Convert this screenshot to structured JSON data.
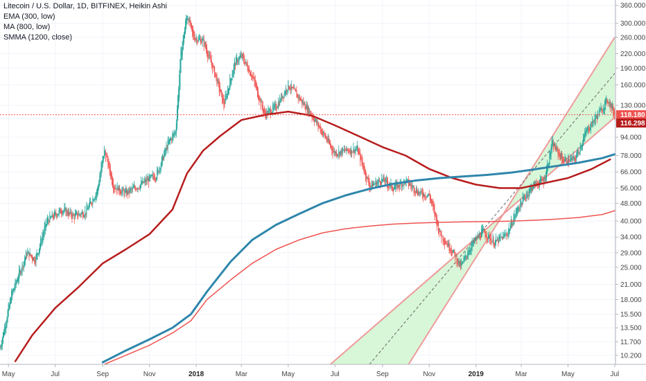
{
  "chart_data": {
    "type": "candlestick",
    "title": "Litecoin / U.S. Dollar, 1D, BITFINEX, Heikin Ashi",
    "scale": "log",
    "ylim": [
      9.3,
      380
    ],
    "grid": true,
    "xlim": [
      "2017-04-20",
      "2019-07-02"
    ],
    "x_ticks": [
      {
        "date": "2017-05-01",
        "label": "May",
        "bold": false
      },
      {
        "date": "2017-07-01",
        "label": "Jul",
        "bold": false
      },
      {
        "date": "2017-09-01",
        "label": "Sep",
        "bold": false
      },
      {
        "date": "2017-11-01",
        "label": "Nov",
        "bold": false
      },
      {
        "date": "2018-01-01",
        "label": "2018",
        "bold": true
      },
      {
        "date": "2018-03-01",
        "label": "Mar",
        "bold": false
      },
      {
        "date": "2018-05-01",
        "label": "May",
        "bold": false
      },
      {
        "date": "2018-07-01",
        "label": "Jul",
        "bold": false
      },
      {
        "date": "2018-09-01",
        "label": "Sep",
        "bold": false
      },
      {
        "date": "2018-11-01",
        "label": "Nov",
        "bold": false
      },
      {
        "date": "2019-01-01",
        "label": "2019",
        "bold": true
      },
      {
        "date": "2019-03-01",
        "label": "Mar",
        "bold": false
      },
      {
        "date": "2019-05-01",
        "label": "May",
        "bold": false
      },
      {
        "date": "2019-07-01",
        "label": "Jul",
        "bold": false
      }
    ],
    "y_ticks": [
      "360.000",
      "300.000",
      "260.000",
      "220.000",
      "190.000",
      "160.000",
      "130.000",
      "94.000",
      "78.000",
      "66.000",
      "56.000",
      "48.000",
      "40.000",
      "34.000",
      "29.000",
      "25.000",
      "21.000",
      "18.000",
      "15.500",
      "13.500",
      "11.700",
      "10.200"
    ],
    "price_line": {
      "value": 118.18,
      "label": "118.180",
      "color": "#ef5350"
    },
    "legend_items": [
      {
        "label": "EMA (300, low)",
        "color": "#b71c1c"
      },
      {
        "label": "MA (800, low)",
        "color": "#2e86ab"
      },
      {
        "label": "SMMA (1200, close)",
        "color": "#ef5350"
      }
    ],
    "price_labels": [
      {
        "text": "118.180",
        "value": 118.18,
        "color": "#ef5350"
      },
      {
        "text": "116.298",
        "value": 116.298,
        "color": "#b71c1c"
      }
    ],
    "price_anchors": [
      [
        "2017-04-20",
        11.0
      ],
      [
        "2017-05-05",
        19.0
      ],
      [
        "2017-05-25",
        29.0
      ],
      [
        "2017-06-05",
        27.0
      ],
      [
        "2017-06-20",
        40.0
      ],
      [
        "2017-07-10",
        45.0
      ],
      [
        "2017-07-25",
        42.0
      ],
      [
        "2017-08-10",
        44.0
      ],
      [
        "2017-08-25",
        55.0
      ],
      [
        "2017-09-03",
        83.0
      ],
      [
        "2017-09-15",
        57.0
      ],
      [
        "2017-10-01",
        53.0
      ],
      [
        "2017-10-20",
        58.0
      ],
      [
        "2017-11-10",
        64.0
      ],
      [
        "2017-11-25",
        88.0
      ],
      [
        "2017-12-05",
        100.0
      ],
      [
        "2017-12-12",
        225.0
      ],
      [
        "2017-12-20",
        330.0
      ],
      [
        "2017-12-28",
        260.0
      ],
      [
        "2018-01-10",
        250.0
      ],
      [
        "2018-01-25",
        180.0
      ],
      [
        "2018-02-06",
        130.0
      ],
      [
        "2018-02-20",
        200.0
      ],
      [
        "2018-03-01",
        215.0
      ],
      [
        "2018-03-15",
        175.0
      ],
      [
        "2018-03-31",
        118.0
      ],
      [
        "2018-04-15",
        128.0
      ],
      [
        "2018-05-01",
        160.0
      ],
      [
        "2018-05-15",
        140.0
      ],
      [
        "2018-05-30",
        120.0
      ],
      [
        "2018-06-15",
        98.0
      ],
      [
        "2018-06-30",
        80.0
      ],
      [
        "2018-07-15",
        82.0
      ],
      [
        "2018-07-30",
        83.0
      ],
      [
        "2018-08-15",
        57.0
      ],
      [
        "2018-09-01",
        61.0
      ],
      [
        "2018-09-15",
        56.0
      ],
      [
        "2018-10-01",
        60.0
      ],
      [
        "2018-10-20",
        53.0
      ],
      [
        "2018-11-01",
        52.0
      ],
      [
        "2018-11-15",
        35.0
      ],
      [
        "2018-11-30",
        30.0
      ],
      [
        "2018-12-12",
        25.0
      ],
      [
        "2018-12-25",
        31.0
      ],
      [
        "2019-01-10",
        36.0
      ],
      [
        "2019-01-25",
        32.0
      ],
      [
        "2019-02-10",
        35.0
      ],
      [
        "2019-02-25",
        46.0
      ],
      [
        "2019-03-15",
        57.0
      ],
      [
        "2019-03-31",
        61.0
      ],
      [
        "2019-04-10",
        88.0
      ],
      [
        "2019-04-25",
        74.0
      ],
      [
        "2019-05-10",
        75.0
      ],
      [
        "2019-05-25",
        100.0
      ],
      [
        "2019-06-10",
        120.0
      ],
      [
        "2019-06-22",
        138.0
      ],
      [
        "2019-07-01",
        118.0
      ]
    ],
    "series": [
      {
        "name": "EMA (300, low)",
        "color": "#b71c1c",
        "width": 2.5,
        "points": [
          [
            "2017-05-10",
            9.6
          ],
          [
            "2017-06-01",
            12.5
          ],
          [
            "2017-07-01",
            16.5
          ],
          [
            "2017-08-01",
            20.5
          ],
          [
            "2017-09-01",
            26.0
          ],
          [
            "2017-10-01",
            30.0
          ],
          [
            "2017-11-01",
            35.0
          ],
          [
            "2017-12-01",
            45.0
          ],
          [
            "2017-12-20",
            65.0
          ],
          [
            "2018-01-10",
            82.0
          ],
          [
            "2018-02-01",
            95.0
          ],
          [
            "2018-03-01",
            112.0
          ],
          [
            "2018-04-01",
            118.0
          ],
          [
            "2018-05-01",
            122.0
          ],
          [
            "2018-06-01",
            117.0
          ],
          [
            "2018-07-01",
            106.0
          ],
          [
            "2018-08-01",
            95.0
          ],
          [
            "2018-09-01",
            85.0
          ],
          [
            "2018-10-01",
            78.0
          ],
          [
            "2018-11-01",
            68.0
          ],
          [
            "2018-12-01",
            62.0
          ],
          [
            "2019-01-01",
            58.0
          ],
          [
            "2019-02-01",
            56.0
          ],
          [
            "2019-03-01",
            56.0
          ],
          [
            "2019-04-01",
            59.0
          ],
          [
            "2019-05-01",
            62.0
          ],
          [
            "2019-06-01",
            68.0
          ],
          [
            "2019-06-25",
            75.0
          ]
        ]
      },
      {
        "name": "MA (800, low)",
        "color": "#2e86ab",
        "width": 3,
        "points": [
          [
            "2017-09-01",
            9.5
          ],
          [
            "2017-10-01",
            10.7
          ],
          [
            "2017-11-01",
            12.0
          ],
          [
            "2017-12-01",
            13.5
          ],
          [
            "2017-12-25",
            15.5
          ],
          [
            "2018-01-15",
            19.5
          ],
          [
            "2018-02-15",
            26.5
          ],
          [
            "2018-03-15",
            33.0
          ],
          [
            "2018-04-15",
            38.5
          ],
          [
            "2018-05-15",
            43.0
          ],
          [
            "2018-06-15",
            48.0
          ],
          [
            "2018-07-15",
            52.0
          ],
          [
            "2018-08-15",
            55.5
          ],
          [
            "2018-09-15",
            58.5
          ],
          [
            "2018-10-15",
            60.5
          ],
          [
            "2018-11-15",
            62.0
          ],
          [
            "2018-12-15",
            63.0
          ],
          [
            "2019-01-15",
            64.0
          ],
          [
            "2019-02-15",
            65.5
          ],
          [
            "2019-03-15",
            67.5
          ],
          [
            "2019-04-15",
            70.0
          ],
          [
            "2019-05-15",
            72.5
          ],
          [
            "2019-06-15",
            76.0
          ],
          [
            "2019-07-01",
            79.0
          ]
        ]
      },
      {
        "name": "SMMA (1200, close)",
        "color": "#ef5350",
        "width": 1.5,
        "points": [
          [
            "2017-09-03",
            9.3
          ],
          [
            "2017-10-01",
            10.2
          ],
          [
            "2017-11-01",
            11.3
          ],
          [
            "2017-12-01",
            12.8
          ],
          [
            "2017-12-25",
            14.5
          ],
          [
            "2018-01-15",
            18.0
          ],
          [
            "2018-02-15",
            22.0
          ],
          [
            "2018-03-15",
            26.0
          ],
          [
            "2018-04-15",
            30.0
          ],
          [
            "2018-05-15",
            33.0
          ],
          [
            "2018-06-15",
            35.5
          ],
          [
            "2018-07-15",
            37.0
          ],
          [
            "2018-08-15",
            38.0
          ],
          [
            "2018-09-15",
            38.8
          ],
          [
            "2018-10-15",
            39.2
          ],
          [
            "2018-11-15",
            39.5
          ],
          [
            "2018-12-15",
            39.7
          ],
          [
            "2019-01-15",
            39.8
          ],
          [
            "2019-02-15",
            40.0
          ],
          [
            "2019-03-15",
            40.3
          ],
          [
            "2019-04-15",
            40.8
          ],
          [
            "2019-05-15",
            41.5
          ],
          [
            "2019-06-15",
            42.8
          ],
          [
            "2019-07-01",
            44.5
          ]
        ]
      }
    ],
    "channel": {
      "fill": "#d4f5d4",
      "edge_color": "#ef9a9a",
      "mid_color": "#666666",
      "upper": [
        [
          "2018-10-05",
          9.3
        ],
        [
          "2019-07-01",
          260.0
        ]
      ],
      "middle": [
        [
          "2018-08-15",
          9.3
        ],
        [
          "2019-07-01",
          180.0
        ]
      ],
      "lower": [
        [
          "2018-06-25",
          9.3
        ],
        [
          "2019-07-01",
          115.0
        ]
      ]
    }
  }
}
